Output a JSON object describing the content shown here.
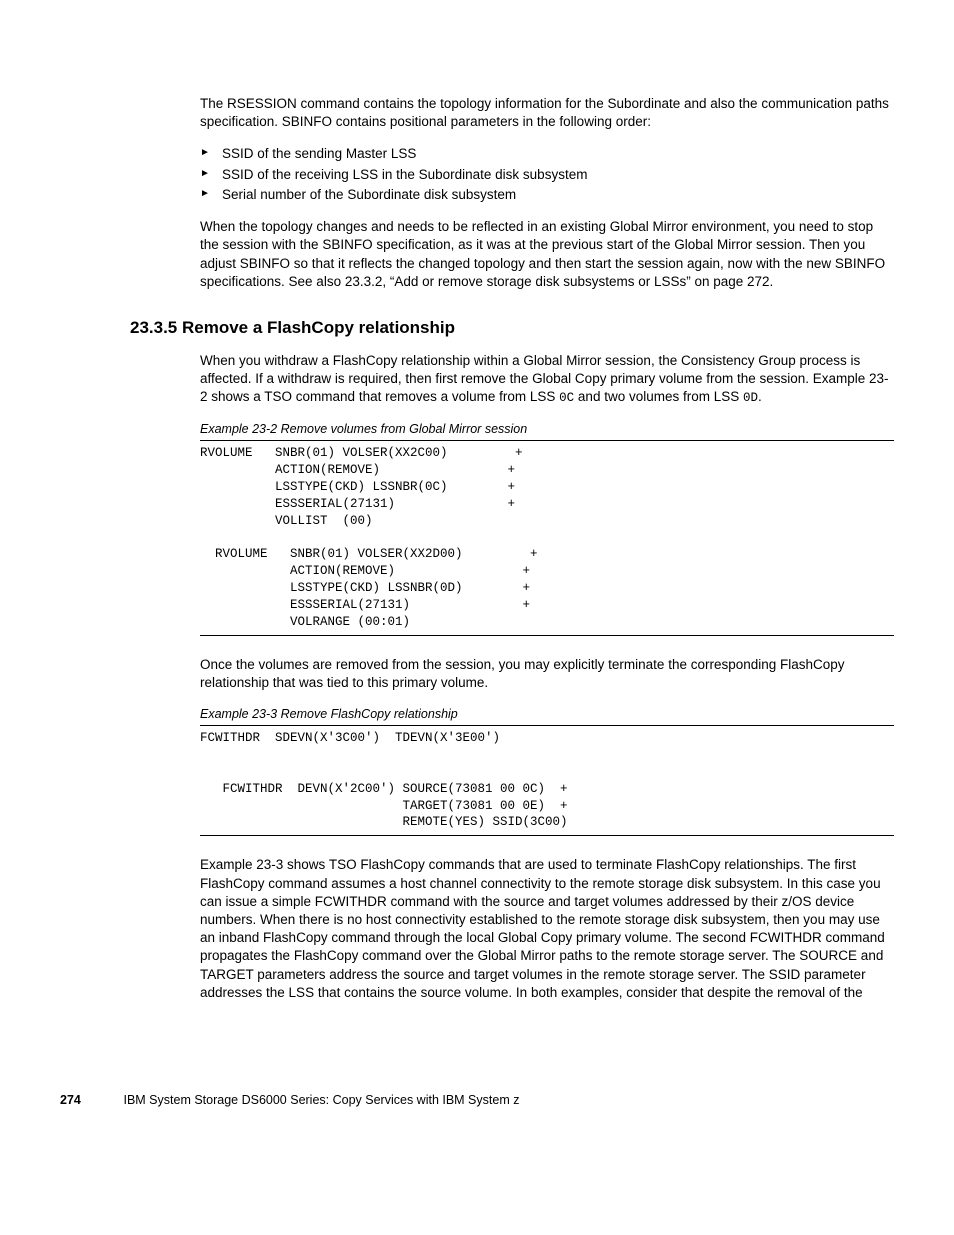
{
  "p1": "The RSESSION command contains the topology information for the Subordinate and also the communication paths specification. SBINFO contains positional parameters in the following order:",
  "li1": "SSID of the sending Master LSS",
  "li2": "SSID of the receiving LSS in the Subordinate disk subsystem",
  "li3": "Serial number of the Subordinate disk subsystem",
  "p2": "When the topology changes and needs to be reflected in an existing Global Mirror environment, you need to stop the session with the SBINFO specification, as it was at the previous start of the Global Mirror session. Then you adjust SBINFO so that it reflects the changed topology and then start the session again, now with the new SBINFO specifications. See also 23.3.2, “Add or remove storage disk subsystems or LSSs” on page 272.",
  "h1": "23.3.5  Remove a FlashCopy relationship",
  "p3a": "When you withdraw a FlashCopy relationship within a Global Mirror session, the Consistency Group process is affected. If a withdraw is required, then first remove the Global Copy primary volume from the session. Example 23-2 shows a TSO command that removes a volume from LSS ",
  "p3m1": "0C",
  "p3b": " and two volumes from LSS ",
  "p3m2": "0D",
  "p3c": ".",
  "cap1": "Example 23-2   Remove volumes from Global Mirror session",
  "code1": "RVOLUME   SNBR(01) VOLSER(XX2C00)         +\n          ACTION(REMOVE)                 +\n          LSSTYPE(CKD) LSSNBR(0C)        +\n          ESSSERIAL(27131)               +\n          VOLLIST  (00)\n\n  RVOLUME   SNBR(01) VOLSER(XX2D00)         +\n            ACTION(REMOVE)                 +\n            LSSTYPE(CKD) LSSNBR(0D)        +\n            ESSSERIAL(27131)               +\n            VOLRANGE (00:01)",
  "p4": "Once the volumes are removed from the session, you may explicitly terminate the corresponding FlashCopy relationship that was tied to this primary volume.",
  "cap2": "Example 23-3   Remove FlashCopy relationship",
  "code2": "FCWITHDR  SDEVN(X'3C00')  TDEVN(X'3E00')\n\n\n   FCWITHDR  DEVN(X'2C00') SOURCE(73081 00 0C)  +\n                           TARGET(73081 00 0E)  +\n                           REMOTE(YES) SSID(3C00)",
  "p5": "Example 23-3 shows TSO FlashCopy commands that are used to terminate FlashCopy relationships. The first FlashCopy command assumes a host channel connectivity to the remote storage disk subsystem. In this case you can issue a simple FCWITHDR command with the source and target volumes addressed by their z/OS device numbers. When there is no host connectivity established to the remote storage disk subsystem, then you may use an inband FlashCopy command through the local Global Copy primary volume. The second FCWITHDR command propagates the FlashCopy command over the Global Mirror paths to the remote storage server. The SOURCE and TARGET parameters address the source and target volumes in the remote storage server. The SSID parameter addresses the LSS that contains the source volume. In both examples, consider that despite the removal of the",
  "footer_page": "274",
  "footer_text": "IBM System Storage DS6000 Series: Copy Services with IBM System z"
}
